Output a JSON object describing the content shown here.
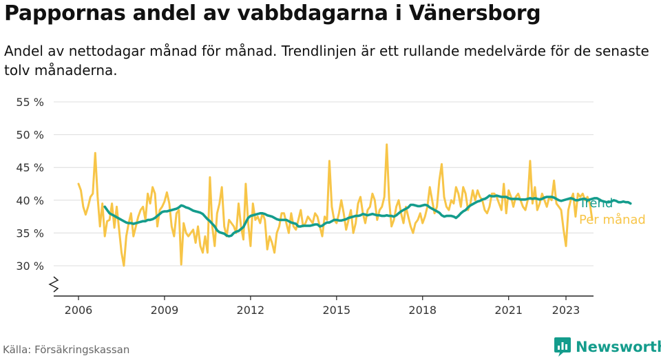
{
  "title": "Pappornas andel av vabbdagarna i Vänersborg",
  "subtitle": "Andel av nettodagar månad för månad. Trendlinjen är ett rullande medelvärde för de senaste tolv månaderna.",
  "source": "Källa: Försäkringskassan",
  "brand": {
    "name": "Newsworthy",
    "icon": "newsworthy-logo-icon",
    "color": "#149c8c"
  },
  "chart_data": {
    "type": "line",
    "title": "Pappornas andel av vabbdagarna i Vänersborg",
    "xlabel": "",
    "ylabel": "",
    "xlim": [
      2005.5,
      2024.0
    ],
    "ylim": [
      25,
      55
    ],
    "y_ticks": [
      30,
      35,
      40,
      45,
      50,
      55
    ],
    "y_tick_labels": [
      "30 %",
      "35 %",
      "40 %",
      "45 %",
      "50 %",
      "55 %"
    ],
    "x_ticks": [
      2006,
      2009,
      2012,
      2015,
      2018,
      2021,
      2023
    ],
    "x_tick_labels": [
      "2006",
      "2009",
      "2012",
      "2015",
      "2018",
      "2021",
      "2023"
    ],
    "grid": "horizontal",
    "axis_break": true,
    "legend": "right, at line ends",
    "series": [
      {
        "name": "Per månad",
        "color": "#f7c548",
        "x_start": 2006.0,
        "step": 0.08333,
        "values": [
          42.5,
          41.5,
          39.0,
          37.8,
          39.0,
          40.5,
          41.0,
          47.2,
          40.5,
          36.0,
          39.5,
          34.5,
          36.8,
          37.0,
          39.5,
          35.8,
          39.0,
          35.5,
          32.0,
          30.0,
          34.5,
          36.5,
          38.0,
          34.5,
          36.0,
          37.5,
          38.5,
          39.0,
          37.0,
          41.0,
          39.5,
          42.0,
          41.0,
          36.0,
          38.5,
          39.0,
          39.8,
          41.2,
          39.5,
          36.0,
          34.5,
          38.0,
          38.5,
          30.2,
          36.5,
          35.0,
          34.5,
          35.0,
          35.5,
          33.5,
          36.0,
          33.0,
          32.0,
          34.5,
          32.0,
          43.5,
          36.0,
          33.0,
          38.0,
          39.5,
          42.0,
          36.0,
          34.5,
          37.0,
          36.5,
          36.0,
          35.0,
          39.5,
          36.0,
          34.0,
          42.5,
          36.5,
          33.0,
          39.5,
          37.0,
          37.5,
          36.5,
          38.0,
          37.0,
          32.5,
          34.5,
          33.5,
          32.0,
          35.0,
          36.0,
          38.0,
          38.0,
          36.5,
          35.0,
          38.0,
          36.0,
          35.5,
          37.0,
          38.5,
          36.0,
          36.5,
          37.5,
          37.0,
          36.5,
          38.0,
          37.5,
          36.0,
          34.5,
          37.5,
          37.0,
          46.0,
          39.0,
          37.0,
          36.5,
          38.0,
          40.0,
          38.0,
          35.5,
          37.0,
          38.5,
          35.0,
          36.5,
          39.5,
          40.5,
          38.0,
          36.5,
          38.5,
          39.0,
          41.0,
          40.0,
          37.0,
          38.5,
          39.0,
          40.5,
          48.5,
          40.0,
          36.0,
          37.0,
          39.0,
          40.0,
          38.0,
          36.5,
          39.0,
          37.5,
          36.0,
          35.0,
          36.5,
          37.0,
          38.0,
          36.5,
          37.5,
          39.0,
          42.0,
          40.0,
          38.0,
          39.0,
          43.0,
          45.5,
          40.5,
          39.0,
          38.5,
          40.0,
          39.5,
          42.0,
          41.0,
          39.0,
          42.0,
          41.0,
          38.5,
          39.5,
          41.5,
          40.0,
          41.5,
          40.5,
          40.0,
          38.5,
          38.0,
          39.0,
          41.0,
          41.0,
          40.5,
          39.5,
          38.5,
          42.5,
          38.0,
          41.5,
          40.5,
          39.0,
          40.5,
          41.0,
          40.0,
          39.0,
          38.5,
          40.0,
          46.0,
          39.5,
          42.0,
          38.5,
          39.5,
          41.0,
          40.0,
          39.0,
          40.5,
          40.0,
          43.0,
          39.5,
          39.0,
          38.5,
          35.5,
          33.0,
          38.5,
          40.0,
          41.0,
          37.5,
          41.0,
          40.5,
          41.0,
          40.0,
          40.5,
          39.5,
          37.0
        ]
      },
      {
        "name": "Trend",
        "color": "#149c8c",
        "x_start": 2006.9167,
        "step": 0.08333,
        "values": [
          39.0,
          38.5,
          38.0,
          37.8,
          37.6,
          37.4,
          37.2,
          37.0,
          36.8,
          36.6,
          36.5,
          36.5,
          36.4,
          36.5,
          36.6,
          36.7,
          36.8,
          36.8,
          37.0,
          37.0,
          37.1,
          37.3,
          37.6,
          37.9,
          38.2,
          38.3,
          38.3,
          38.4,
          38.5,
          38.6,
          38.7,
          38.9,
          39.2,
          39.1,
          38.9,
          38.8,
          38.6,
          38.4,
          38.3,
          38.2,
          38.1,
          37.9,
          37.5,
          37.1,
          36.8,
          36.4,
          36.0,
          35.4,
          35.1,
          35.0,
          34.9,
          34.6,
          34.5,
          34.6,
          35.0,
          35.2,
          35.3,
          35.6,
          35.9,
          36.6,
          37.3,
          37.6,
          37.7,
          37.8,
          37.9,
          38.0,
          38.0,
          37.9,
          37.7,
          37.6,
          37.5,
          37.3,
          37.1,
          37.0,
          37.0,
          37.0,
          37.0,
          36.8,
          36.6,
          36.5,
          36.4,
          36.0,
          36.0,
          36.1,
          36.1,
          36.1,
          36.1,
          36.2,
          36.3,
          36.3,
          36.0,
          36.1,
          36.4,
          36.6,
          36.6,
          36.8,
          37.0,
          37.0,
          36.9,
          36.9,
          37.0,
          37.1,
          37.3,
          37.4,
          37.5,
          37.6,
          37.6,
          37.7,
          37.9,
          37.8,
          37.7,
          37.8,
          37.9,
          37.8,
          37.7,
          37.7,
          37.6,
          37.6,
          37.7,
          37.6,
          37.6,
          37.5,
          37.7,
          38.0,
          38.3,
          38.5,
          38.7,
          38.9,
          39.3,
          39.3,
          39.2,
          39.1,
          39.1,
          39.2,
          39.3,
          39.2,
          38.9,
          38.7,
          38.5,
          38.3,
          38.1,
          37.7,
          37.5,
          37.6,
          37.6,
          37.6,
          37.5,
          37.3,
          37.6,
          38.0,
          38.3,
          38.5,
          38.9,
          39.2,
          39.4,
          39.6,
          39.8,
          39.9,
          40.1,
          40.2,
          40.4,
          40.7,
          40.6,
          40.6,
          40.7,
          40.6,
          40.5,
          40.5,
          40.5,
          40.3,
          40.2,
          40.2,
          40.2,
          40.2,
          40.1,
          40.1,
          40.1,
          40.2,
          40.3,
          40.2,
          40.3,
          40.2,
          40.1,
          40.2,
          40.4,
          40.5,
          40.5,
          40.5,
          40.4,
          40.2,
          40.0,
          39.9,
          40.0,
          40.1,
          40.2,
          40.3,
          40.2,
          40.0,
          40.0,
          40.1,
          40.2,
          40.2,
          40.0,
          40.1,
          40.2,
          40.3,
          40.3,
          40.1,
          39.9,
          39.8,
          39.7,
          39.7,
          39.8,
          40.0,
          39.9,
          39.7,
          39.7,
          39.8,
          39.7,
          39.7,
          39.5
        ]
      }
    ]
  }
}
